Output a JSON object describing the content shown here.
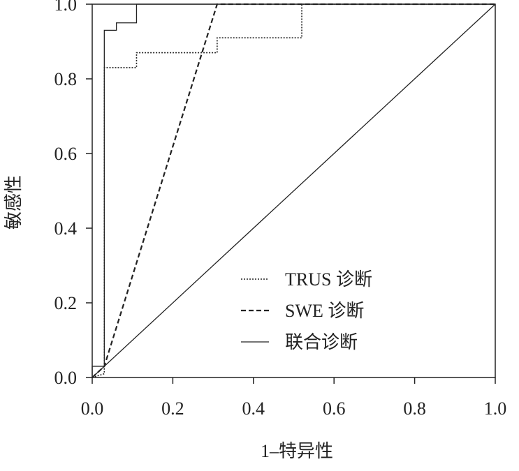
{
  "chart_data": {
    "type": "line",
    "xlabel": "1–特异性",
    "ylabel": "敏感性",
    "xlim": [
      0,
      1
    ],
    "ylim": [
      0,
      1
    ],
    "xticks": [
      {
        "value": 0,
        "label": "0.0"
      },
      {
        "value": 0.2,
        "label": "0.2"
      },
      {
        "value": 0.4,
        "label": "0.4"
      },
      {
        "value": 0.6,
        "label": "0.6"
      },
      {
        "value": 0.8,
        "label": "0.8"
      },
      {
        "value": 1,
        "label": "1.0"
      }
    ],
    "yticks": [
      {
        "value": 0,
        "label": "0.0"
      },
      {
        "value": 0.2,
        "label": "0.2"
      },
      {
        "value": 0.4,
        "label": "0.4"
      },
      {
        "value": 0.6,
        "label": "0.6"
      },
      {
        "value": 0.8,
        "label": "0.8"
      },
      {
        "value": 1,
        "label": "1.0"
      }
    ],
    "legend": "lower-right",
    "series": [
      {
        "name": "TRUS 诊断",
        "color": "#222222",
        "style": "dotted",
        "x": [
          0,
          0.03,
          0.03,
          0.11,
          0.11,
          0.31,
          0.31,
          0.52,
          0.52,
          1
        ],
        "values": [
          0,
          0.01,
          0.83,
          0.83,
          0.87,
          0.87,
          0.91,
          0.91,
          1,
          1
        ]
      },
      {
        "name": "SWE 诊断",
        "color": "#222222",
        "style": "dashed",
        "x": [
          0,
          0.03,
          0.31,
          1
        ],
        "values": [
          0,
          0.03,
          1,
          1
        ]
      },
      {
        "name": "联合诊断",
        "color": "#222222",
        "style": "solid",
        "x": [
          0,
          0,
          0.03,
          0.03,
          0.06,
          0.06,
          0.11,
          0.11,
          1
        ],
        "values": [
          0,
          0.03,
          0.03,
          0.93,
          0.93,
          0.95,
          0.95,
          1,
          1
        ]
      }
    ],
    "diagonal": {
      "color": "#222222",
      "x": [
        0,
        1
      ],
      "values": [
        0,
        1
      ]
    }
  }
}
